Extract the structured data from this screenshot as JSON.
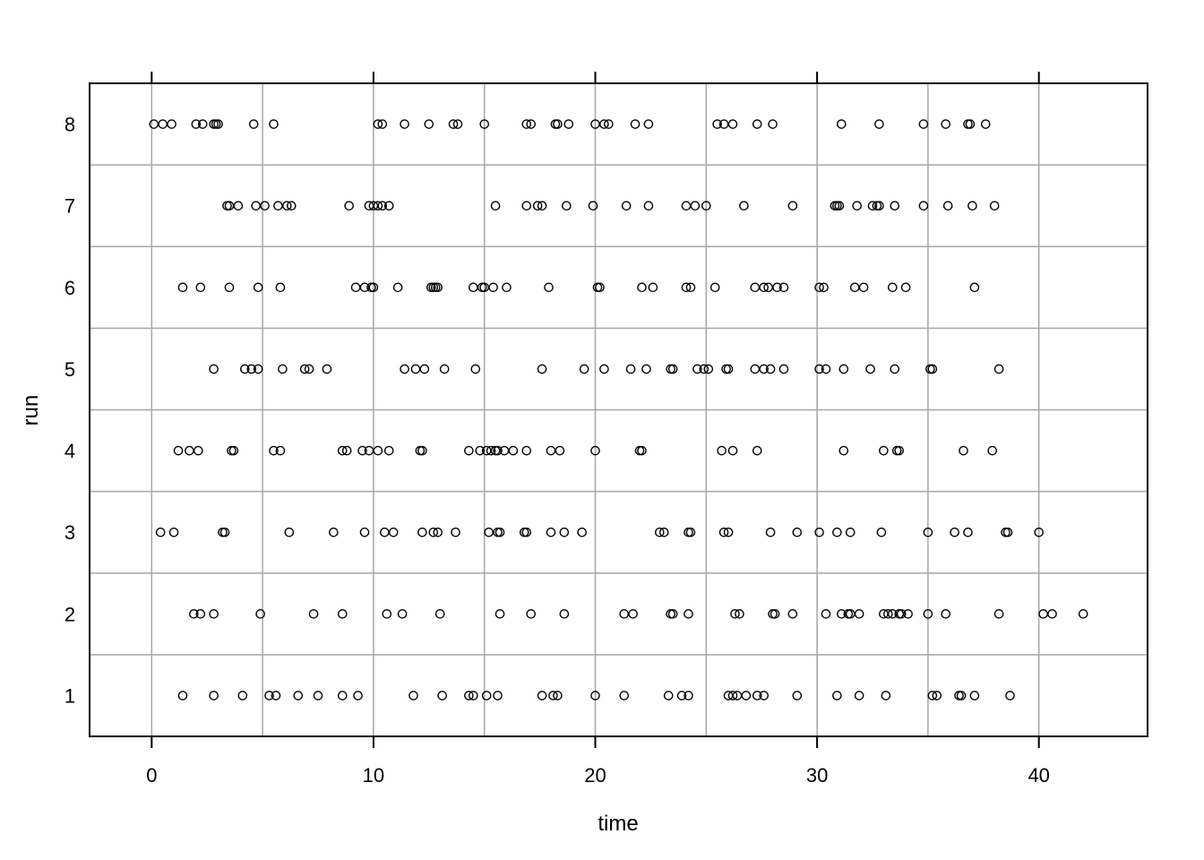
{
  "chart_data": {
    "type": "scatter",
    "title": "",
    "xlabel": "time",
    "ylabel": "run",
    "xlim": [
      -2.8,
      44.9
    ],
    "ylim": [
      0.5,
      8.5
    ],
    "x_ticks": [
      0,
      10,
      20,
      30,
      40
    ],
    "x_tick_labels": [
      "0",
      "10",
      "20",
      "30",
      "40"
    ],
    "y_ticks": [
      1,
      2,
      3,
      4,
      5,
      6,
      7,
      8
    ],
    "y_tick_labels": [
      "1",
      "2",
      "3",
      "4",
      "5",
      "6",
      "7",
      "8"
    ],
    "x_grid": [
      0,
      5,
      10,
      15,
      20,
      25,
      30,
      35,
      40
    ],
    "y_grid": [
      1.5,
      2.5,
      3.5,
      4.5,
      5.5,
      6.5,
      7.5
    ],
    "grid": true,
    "marker": "open-circle",
    "series": [
      {
        "run": 1,
        "x": [
          1.4,
          2.8,
          4.1,
          5.3,
          5.6,
          6.6,
          7.5,
          8.6,
          9.3,
          11.8,
          13.1,
          14.3,
          14.5,
          15.1,
          15.6,
          17.6,
          18.1,
          18.3,
          20.0,
          21.3,
          23.3,
          23.9,
          24.2,
          26.0,
          26.2,
          26.4,
          26.8,
          27.3,
          27.6,
          29.1,
          30.9,
          31.9,
          33.1,
          35.2,
          35.4,
          36.4,
          36.5,
          37.1,
          38.7
        ]
      },
      {
        "run": 2,
        "x": [
          1.9,
          2.2,
          2.8,
          4.9,
          7.3,
          8.6,
          10.6,
          11.3,
          13.0,
          15.7,
          17.1,
          18.6,
          21.3,
          21.7,
          23.4,
          23.5,
          24.2,
          26.3,
          26.5,
          28.0,
          28.1,
          28.9,
          30.4,
          31.1,
          31.4,
          31.5,
          31.9,
          33.0,
          33.2,
          33.4,
          33.7,
          33.8,
          34.1,
          35.0,
          35.8,
          38.2,
          40.2,
          40.6,
          42.0
        ]
      },
      {
        "run": 3,
        "x": [
          0.4,
          1.0,
          3.2,
          3.3,
          6.2,
          8.2,
          9.6,
          10.5,
          10.9,
          12.2,
          12.7,
          12.9,
          13.7,
          15.2,
          15.6,
          15.7,
          16.8,
          16.9,
          18.0,
          18.6,
          19.4,
          22.9,
          23.1,
          24.2,
          24.3,
          25.8,
          26.0,
          27.9,
          29.1,
          30.1,
          30.9,
          31.5,
          32.9,
          35.0,
          36.2,
          36.8,
          38.5,
          38.6,
          40.0
        ]
      },
      {
        "run": 4,
        "x": [
          1.2,
          1.7,
          2.1,
          3.6,
          3.7,
          5.5,
          5.8,
          8.6,
          8.8,
          9.5,
          9.8,
          10.2,
          10.7,
          12.1,
          12.2,
          14.3,
          14.8,
          15.1,
          15.3,
          15.5,
          15.6,
          15.9,
          16.3,
          16.9,
          18.0,
          18.4,
          20.0,
          22.0,
          22.1,
          25.7,
          26.2,
          27.3,
          31.2,
          33.0,
          33.6,
          33.7,
          36.6,
          37.9
        ]
      },
      {
        "run": 5,
        "x": [
          2.8,
          4.2,
          4.5,
          4.8,
          5.9,
          6.9,
          7.1,
          7.9,
          11.4,
          11.9,
          12.3,
          13.2,
          14.6,
          17.6,
          19.5,
          20.4,
          21.6,
          22.3,
          23.4,
          23.5,
          24.6,
          24.9,
          25.1,
          25.9,
          26.0,
          27.2,
          27.6,
          27.9,
          28.5,
          30.1,
          30.4,
          31.2,
          32.4,
          33.5,
          35.1,
          35.2,
          38.2
        ]
      },
      {
        "run": 6,
        "x": [
          1.4,
          2.2,
          3.5,
          4.8,
          5.8,
          9.2,
          9.6,
          9.9,
          10.0,
          11.1,
          12.6,
          12.7,
          12.8,
          12.9,
          14.5,
          14.9,
          15.0,
          15.4,
          16.0,
          17.9,
          20.1,
          20.2,
          22.1,
          22.6,
          24.1,
          24.3,
          25.4,
          27.2,
          27.6,
          27.8,
          28.2,
          28.5,
          30.1,
          30.3,
          31.7,
          32.1,
          33.4,
          34.0,
          37.1
        ]
      },
      {
        "run": 7,
        "x": [
          3.4,
          3.5,
          3.9,
          4.7,
          5.1,
          5.7,
          6.1,
          6.3,
          8.9,
          9.8,
          10.0,
          10.2,
          10.4,
          10.7,
          15.5,
          16.9,
          17.4,
          17.6,
          18.7,
          19.9,
          21.4,
          22.4,
          24.1,
          24.5,
          25.0,
          26.7,
          28.9,
          30.8,
          30.9,
          31.0,
          31.8,
          32.5,
          32.7,
          32.8,
          33.5,
          34.8,
          35.9,
          37.0,
          38.0
        ]
      },
      {
        "run": 8,
        "x": [
          0.1,
          0.5,
          0.9,
          2.0,
          2.3,
          2.8,
          2.9,
          3.0,
          4.6,
          5.5,
          10.2,
          10.4,
          11.4,
          12.5,
          13.6,
          13.8,
          15.0,
          16.9,
          17.1,
          18.2,
          18.3,
          18.8,
          20.0,
          20.4,
          20.6,
          21.8,
          22.4,
          25.5,
          25.8,
          26.2,
          27.3,
          28.0,
          31.1,
          32.8,
          34.8,
          35.8,
          36.8,
          36.9,
          37.6
        ]
      }
    ]
  }
}
